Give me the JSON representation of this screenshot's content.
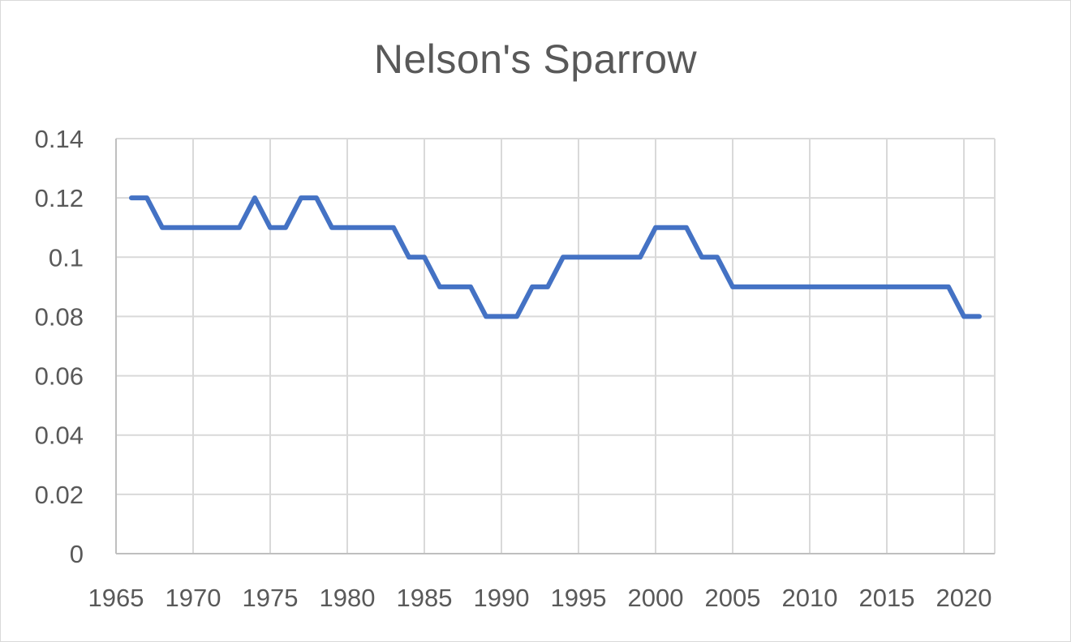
{
  "chart_data": {
    "type": "line",
    "title": "Nelson's Sparrow",
    "xlabel": "",
    "ylabel": "",
    "xlim": [
      1965,
      2022
    ],
    "ylim": [
      0,
      0.14
    ],
    "x_ticks": [
      1965,
      1970,
      1975,
      1980,
      1985,
      1990,
      1995,
      2000,
      2005,
      2010,
      2015,
      2020
    ],
    "y_ticks": [
      "0",
      "0.02",
      "0.04",
      "0.06",
      "0.08",
      "0.1",
      "0.12",
      "0.14"
    ],
    "y_tick_values": [
      0,
      0.02,
      0.04,
      0.06,
      0.08,
      0.1,
      0.12,
      0.14
    ],
    "grid": true,
    "legend": "none",
    "series": [
      {
        "color": "#4472c4",
        "x": [
          1966,
          1967,
          1968,
          1969,
          1970,
          1971,
          1972,
          1973,
          1974,
          1975,
          1976,
          1977,
          1978,
          1979,
          1980,
          1981,
          1982,
          1983,
          1984,
          1985,
          1986,
          1987,
          1988,
          1989,
          1990,
          1991,
          1992,
          1993,
          1994,
          1995,
          1996,
          1997,
          1998,
          1999,
          2000,
          2001,
          2002,
          2003,
          2004,
          2005,
          2006,
          2007,
          2008,
          2009,
          2010,
          2011,
          2012,
          2013,
          2014,
          2015,
          2016,
          2017,
          2018,
          2019,
          2020,
          2021
        ],
        "values": [
          0.12,
          0.12,
          0.11,
          0.11,
          0.11,
          0.11,
          0.11,
          0.11,
          0.12,
          0.11,
          0.11,
          0.12,
          0.12,
          0.11,
          0.11,
          0.11,
          0.11,
          0.11,
          0.1,
          0.1,
          0.09,
          0.09,
          0.09,
          0.08,
          0.08,
          0.08,
          0.09,
          0.09,
          0.1,
          0.1,
          0.1,
          0.1,
          0.1,
          0.1,
          0.11,
          0.11,
          0.11,
          0.1,
          0.1,
          0.09,
          0.09,
          0.09,
          0.09,
          0.09,
          0.09,
          0.09,
          0.09,
          0.09,
          0.09,
          0.09,
          0.09,
          0.09,
          0.09,
          0.09,
          0.08,
          0.08
        ]
      }
    ]
  }
}
